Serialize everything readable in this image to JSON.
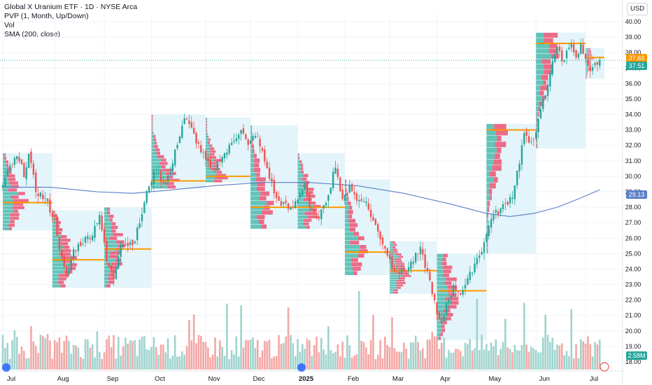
{
  "legend": {
    "title": "Global X Uranium ETF · 1D · NYSE Arca",
    "line2": "PVP (1, Month, Up/Down)",
    "line3": "Vol",
    "line4": "SMA (200, close)"
  },
  "currency": "USD",
  "badges": {
    "poc": "37.69",
    "last": "37.51",
    "sma": "29.13",
    "volume": "2.58M"
  },
  "colors": {
    "up": "#26a69a",
    "down": "#ef5350",
    "vol_up": "#9fd3cd",
    "vol_down": "#f3a7a5",
    "sma": "#5b7fc8",
    "poc": "#ff9800",
    "profile_bg": "#e3f4fa",
    "profile_up": "#62c4b9",
    "profile_down": "#ec6b86",
    "last_line": "#26a69a",
    "grid": "#f0f3fa"
  },
  "chart_data": {
    "type": "candlestick",
    "y_axis": {
      "min": 17.5,
      "max": 40.5,
      "ticks": [
        "18.00",
        "19.00",
        "20.00",
        "21.00",
        "22.00",
        "23.00",
        "24.00",
        "25.00",
        "26.00",
        "27.00",
        "28.00",
        "29.00",
        "30.00",
        "31.00",
        "32.00",
        "33.00",
        "34.00",
        "35.00",
        "36.00",
        "37.00",
        "38.00",
        "39.00",
        "40.00"
      ]
    },
    "x_axis": {
      "labels": [
        {
          "label": "Jul",
          "day": 0
        },
        {
          "label": "Aug",
          "day": 22
        },
        {
          "label": "Sep",
          "day": 43
        },
        {
          "label": "Oct",
          "day": 63
        },
        {
          "label": "Nov",
          "day": 86
        },
        {
          "label": "Dec",
          "day": 105
        },
        {
          "label": "2025",
          "day": 125
        },
        {
          "label": "Feb",
          "day": 145
        },
        {
          "label": "Mar",
          "day": 164
        },
        {
          "label": "Apr",
          "day": 184
        },
        {
          "label": "May",
          "day": 205
        },
        {
          "label": "Jun",
          "day": 226
        },
        {
          "label": "Jul",
          "day": 247
        }
      ],
      "total_days": 255
    },
    "price_path": [
      {
        "day": 0,
        "close": 29.4
      },
      {
        "day": 3,
        "close": 30.6
      },
      {
        "day": 6,
        "close": 31.2
      },
      {
        "day": 9,
        "close": 30.2
      },
      {
        "day": 11,
        "close": 31.4
      },
      {
        "day": 14,
        "close": 29.1
      },
      {
        "day": 18,
        "close": 28.5
      },
      {
        "day": 22,
        "close": 27.2
      },
      {
        "day": 25,
        "close": 24.6
      },
      {
        "day": 27,
        "close": 23.4
      },
      {
        "day": 30,
        "close": 25.2
      },
      {
        "day": 34,
        "close": 25.8
      },
      {
        "day": 38,
        "close": 26.3
      },
      {
        "day": 41,
        "close": 27.6
      },
      {
        "day": 44,
        "close": 24.5
      },
      {
        "day": 47,
        "close": 23.4
      },
      {
        "day": 50,
        "close": 25.8
      },
      {
        "day": 53,
        "close": 25.6
      },
      {
        "day": 56,
        "close": 25.9
      },
      {
        "day": 59,
        "close": 27.6
      },
      {
        "day": 62,
        "close": 29.5
      },
      {
        "day": 65,
        "close": 30.4
      },
      {
        "day": 68,
        "close": 29.6
      },
      {
        "day": 71,
        "close": 30.2
      },
      {
        "day": 74,
        "close": 32.2
      },
      {
        "day": 77,
        "close": 33.8
      },
      {
        "day": 80,
        "close": 33.0
      },
      {
        "day": 83,
        "close": 32.0
      },
      {
        "day": 86,
        "close": 31.0
      },
      {
        "day": 89,
        "close": 30.2
      },
      {
        "day": 92,
        "close": 31.2
      },
      {
        "day": 95,
        "close": 31.6
      },
      {
        "day": 98,
        "close": 32.4
      },
      {
        "day": 101,
        "close": 33.1
      },
      {
        "day": 104,
        "close": 31.9
      },
      {
        "day": 107,
        "close": 32.8
      },
      {
        "day": 110,
        "close": 31.5
      },
      {
        "day": 113,
        "close": 30.0
      },
      {
        "day": 116,
        "close": 28.5
      },
      {
        "day": 119,
        "close": 28.2
      },
      {
        "day": 122,
        "close": 27.8
      },
      {
        "day": 125,
        "close": 28.6
      },
      {
        "day": 128,
        "close": 29.6
      },
      {
        "day": 130,
        "close": 28.0
      },
      {
        "day": 133,
        "close": 27.3
      },
      {
        "day": 136,
        "close": 27.9
      },
      {
        "day": 139,
        "close": 29.5
      },
      {
        "day": 141,
        "close": 30.8
      },
      {
        "day": 144,
        "close": 28.3
      },
      {
        "day": 147,
        "close": 29.5
      },
      {
        "day": 150,
        "close": 28.4
      },
      {
        "day": 153,
        "close": 28.6
      },
      {
        "day": 156,
        "close": 27.5
      },
      {
        "day": 159,
        "close": 26.4
      },
      {
        "day": 162,
        "close": 25.4
      },
      {
        "day": 165,
        "close": 24.2
      },
      {
        "day": 168,
        "close": 23.8
      },
      {
        "day": 171,
        "close": 23.9
      },
      {
        "day": 174,
        "close": 24.6
      },
      {
        "day": 177,
        "close": 25.2
      },
      {
        "day": 180,
        "close": 23.8
      },
      {
        "day": 182,
        "close": 22.6
      },
      {
        "day": 184,
        "close": 21.0
      },
      {
        "day": 186,
        "close": 20.3
      },
      {
        "day": 188,
        "close": 21.8
      },
      {
        "day": 191,
        "close": 22.8
      },
      {
        "day": 194,
        "close": 22.5
      },
      {
        "day": 197,
        "close": 23.2
      },
      {
        "day": 200,
        "close": 24.4
      },
      {
        "day": 203,
        "close": 25.3
      },
      {
        "day": 205,
        "close": 26.2
      },
      {
        "day": 207,
        "close": 27.4
      },
      {
        "day": 210,
        "close": 27.7
      },
      {
        "day": 213,
        "close": 28.2
      },
      {
        "day": 216,
        "close": 28.8
      },
      {
        "day": 219,
        "close": 31.0
      },
      {
        "day": 221,
        "close": 32.8
      },
      {
        "day": 223,
        "close": 32.0
      },
      {
        "day": 225,
        "close": 32.6
      },
      {
        "day": 227,
        "close": 33.5
      },
      {
        "day": 229,
        "close": 34.8
      },
      {
        "day": 231,
        "close": 35.8
      },
      {
        "day": 233,
        "close": 37.6
      },
      {
        "day": 235,
        "close": 38.4
      },
      {
        "day": 237,
        "close": 37.4
      },
      {
        "day": 239,
        "close": 38.0
      },
      {
        "day": 241,
        "close": 38.8
      },
      {
        "day": 243,
        "close": 37.5
      },
      {
        "day": 245,
        "close": 38.4
      },
      {
        "day": 247,
        "close": 37.4
      },
      {
        "day": 249,
        "close": 36.6
      },
      {
        "day": 251,
        "close": 37.2
      },
      {
        "day": 253,
        "close": 37.51
      }
    ],
    "sma_path": [
      {
        "day": 0,
        "value": 29.3
      },
      {
        "day": 20,
        "value": 29.3
      },
      {
        "day": 40,
        "value": 29.0
      },
      {
        "day": 55,
        "value": 28.9
      },
      {
        "day": 70,
        "value": 29.1
      },
      {
        "day": 90,
        "value": 29.4
      },
      {
        "day": 110,
        "value": 29.6
      },
      {
        "day": 130,
        "value": 29.6
      },
      {
        "day": 150,
        "value": 29.4
      },
      {
        "day": 170,
        "value": 28.9
      },
      {
        "day": 190,
        "value": 28.2
      },
      {
        "day": 205,
        "value": 27.6
      },
      {
        "day": 215,
        "value": 27.4
      },
      {
        "day": 225,
        "value": 27.6
      },
      {
        "day": 235,
        "value": 28.0
      },
      {
        "day": 245,
        "value": 28.6
      },
      {
        "day": 253,
        "value": 29.13
      }
    ],
    "profiles": [
      {
        "start": 0,
        "end": 21,
        "low": 26.5,
        "high": 31.5,
        "poc": 28.3
      },
      {
        "start": 21,
        "end": 43,
        "low": 22.8,
        "high": 27.8,
        "poc": 24.6
      },
      {
        "start": 43,
        "end": 63,
        "low": 22.8,
        "high": 28.0,
        "poc": 25.3
      },
      {
        "start": 63,
        "end": 86,
        "low": 29.2,
        "high": 34.0,
        "poc": 29.7
      },
      {
        "start": 86,
        "end": 105,
        "low": 29.6,
        "high": 33.8,
        "poc": 30.0
      },
      {
        "start": 105,
        "end": 125,
        "low": 26.6,
        "high": 33.3,
        "poc": 28.0
      },
      {
        "start": 125,
        "end": 145,
        "low": 26.6,
        "high": 31.5,
        "poc": 28.0
      },
      {
        "start": 145,
        "end": 164,
        "low": 23.6,
        "high": 29.8,
        "poc": 25.1
      },
      {
        "start": 164,
        "end": 184,
        "low": 22.4,
        "high": 25.8,
        "poc": 23.9
      },
      {
        "start": 184,
        "end": 205,
        "low": 19.4,
        "high": 25.0,
        "poc": 22.6
      },
      {
        "start": 205,
        "end": 226,
        "low": 25.0,
        "high": 33.4,
        "poc": 33.0
      },
      {
        "start": 226,
        "end": 247,
        "low": 31.8,
        "high": 39.3,
        "poc": 38.6
      },
      {
        "start": 247,
        "end": 255,
        "low": 36.3,
        "high": 38.3,
        "poc": 37.69
      }
    ]
  }
}
